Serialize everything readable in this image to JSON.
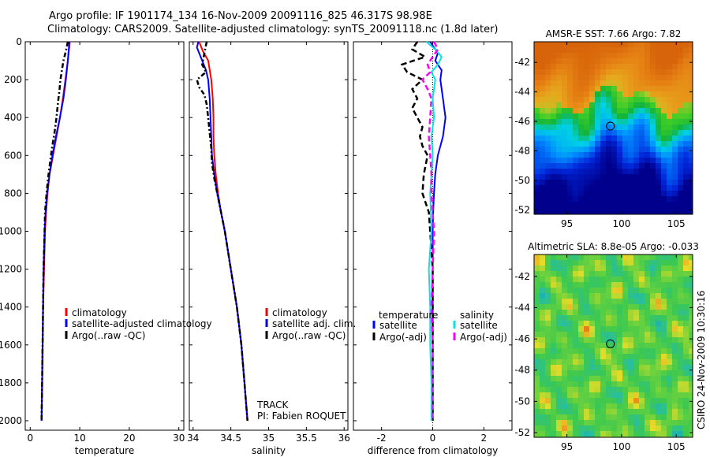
{
  "title": {
    "line1": "Argo profile: IF 1901174_134 16-Nov-2009 20091116_825 46.317S 98.98E",
    "line2": "Climatology: CARS2009. Satellite-adjusted climatology: synTS_20091118.nc (1.8d later)"
  },
  "colors": {
    "climatology": "#ff0000",
    "satellite": "#0000ff",
    "argo": "#000000",
    "sat_sal": "#00e5e5",
    "argo_sal": "#ff00ff"
  },
  "chart_data": [
    {
      "type": "line",
      "xlabel": "temperature",
      "xlim": [
        -1,
        31
      ],
      "ylim": [
        2050,
        0
      ],
      "xticks": [
        0,
        10,
        20,
        30
      ],
      "xtick_labels": [
        "0",
        "10",
        "20",
        "30"
      ],
      "yticks": [
        0,
        200,
        400,
        600,
        800,
        1000,
        1200,
        1400,
        1600,
        1800,
        2000
      ],
      "ytick_labels": [
        "0",
        "200",
        "400",
        "600",
        "800",
        "1000",
        "1200",
        "1400",
        "1600",
        "1800",
        "2000"
      ],
      "legend": {
        "entries": [
          "climatology",
          "satellite-adjusted climatology",
          "Argo(..raw -QC)"
        ]
      },
      "series": [
        {
          "name": "climatology",
          "key": "climatology",
          "dash": "",
          "depth": [
            0,
            100,
            200,
            300,
            400,
            500,
            600,
            700,
            800,
            900,
            1000,
            1200,
            1400,
            1600,
            1800,
            2000
          ],
          "values": [
            8.0,
            7.6,
            7.1,
            6.6,
            6.0,
            5.3,
            4.6,
            3.9,
            3.5,
            3.2,
            3.0,
            2.8,
            2.6,
            2.5,
            2.4,
            2.3
          ]
        },
        {
          "name": "satellite-adjusted climatology",
          "key": "satellite",
          "dash": "",
          "depth": [
            0,
            100,
            200,
            300,
            400,
            500,
            600,
            700,
            800,
            900,
            1000,
            1200,
            1400,
            1600,
            1800,
            2000
          ],
          "values": [
            7.9,
            7.6,
            7.2,
            6.7,
            6.0,
            5.2,
            4.5,
            3.9,
            3.4,
            3.1,
            2.9,
            2.7,
            2.6,
            2.5,
            2.4,
            2.3
          ]
        },
        {
          "name": "Argo(..raw -QC)",
          "key": "argo",
          "dash": "6,3,2,3",
          "depth": [
            0,
            50,
            100,
            150,
            200,
            260,
            320,
            400,
            480,
            560,
            640,
            720,
            800,
            900,
            1000,
            1200,
            1400,
            1600,
            1800,
            2000
          ],
          "values": [
            7.6,
            7.2,
            6.7,
            6.4,
            6.1,
            5.9,
            5.6,
            5.3,
            4.9,
            4.4,
            4.0,
            3.6,
            3.3,
            3.0,
            2.9,
            2.7,
            2.6,
            2.5,
            2.4,
            2.3
          ]
        }
      ]
    },
    {
      "type": "line",
      "xlabel": "salinity",
      "xlim": [
        33.95,
        36.05
      ],
      "ylim": [
        2050,
        0
      ],
      "xticks": [
        34,
        34.5,
        35,
        35.5,
        36
      ],
      "xtick_labels": [
        "34",
        "34.5",
        "35",
        "35.5",
        "36"
      ],
      "legend": {
        "entries": [
          "climatology",
          "satellite adj. clim.",
          "Argo(..raw -QC)"
        ]
      },
      "annotation": {
        "track": "TRACK",
        "pi": "PI: Fabien ROQUET"
      },
      "series": [
        {
          "name": "climatology",
          "key": "climatology",
          "dash": "",
          "depth": [
            0,
            50,
            100,
            200,
            300,
            400,
            500,
            600,
            700,
            800,
            900,
            1000,
            1200,
            1400,
            1600,
            1800,
            2000
          ],
          "values": [
            34.08,
            34.13,
            34.2,
            34.24,
            34.26,
            34.27,
            34.27,
            34.28,
            34.3,
            34.33,
            34.37,
            34.42,
            34.5,
            34.58,
            34.64,
            34.68,
            34.72
          ]
        },
        {
          "name": "satellite adj. clim.",
          "key": "satellite",
          "dash": "",
          "depth": [
            0,
            30,
            80,
            150,
            200,
            300,
            400,
            500,
            600,
            700,
            800,
            900,
            1000,
            1200,
            1400,
            1600,
            1800,
            2000
          ],
          "values": [
            34.07,
            34.05,
            34.1,
            34.17,
            34.2,
            34.22,
            34.23,
            34.24,
            34.25,
            34.28,
            34.32,
            34.37,
            34.42,
            34.5,
            34.58,
            34.64,
            34.68,
            34.72
          ]
        },
        {
          "name": "Argo(..raw -QC)",
          "key": "argo",
          "dash": "6,3,2,3",
          "depth": [
            0,
            60,
            120,
            160,
            200,
            240,
            280,
            330,
            400,
            480,
            560,
            640,
            720,
            800,
            900,
            1000,
            1200,
            1400,
            1600,
            1800,
            2000
          ],
          "values": [
            34.18,
            34.15,
            34.12,
            34.17,
            34.05,
            34.08,
            34.15,
            34.18,
            34.2,
            34.22,
            34.24,
            34.25,
            34.28,
            34.32,
            34.37,
            34.42,
            34.5,
            34.58,
            34.64,
            34.68,
            34.72
          ]
        }
      ]
    },
    {
      "type": "line",
      "xlabel": "difference from climatology",
      "xlim": [
        -3.1,
        3.1
      ],
      "ylim": [
        2050,
        0
      ],
      "xticks": [
        -2,
        0,
        2
      ],
      "xtick_labels": [
        "-2",
        "0",
        "2"
      ],
      "legend": {
        "temperature_header": "temperature",
        "salinity_header": "salinity",
        "entries": [
          "satellite",
          "Argo(-adj)",
          "satellite",
          "Argo(-adj)"
        ]
      },
      "series": [
        {
          "name": "temperature satellite",
          "key": "satellite",
          "dash": "",
          "depth": [
            0,
            30,
            60,
            100,
            150,
            200,
            300,
            400,
            500,
            600,
            700,
            800,
            900,
            1000,
            1200,
            1400,
            1600,
            1800,
            2000
          ],
          "values": [
            -0.1,
            0.05,
            0.2,
            0.1,
            0.35,
            0.3,
            0.4,
            0.5,
            0.4,
            0.2,
            0.1,
            0.05,
            0.02,
            0.0,
            0.0,
            0.0,
            0.0,
            0.0,
            0.0
          ]
        },
        {
          "name": "temperature Argo(-adj)",
          "key": "argo",
          "dash": "7,4",
          "depth": [
            0,
            40,
            80,
            120,
            160,
            200,
            250,
            300,
            350,
            400,
            450,
            500,
            550,
            600,
            700,
            800,
            900,
            1000,
            1100,
            1200,
            1400,
            1600,
            1800,
            2000
          ],
          "values": [
            -0.6,
            -0.8,
            -0.3,
            -1.2,
            -1.0,
            -0.4,
            -0.8,
            -0.6,
            -0.8,
            -0.6,
            -0.4,
            -0.5,
            -0.4,
            -0.2,
            -0.35,
            -0.4,
            -0.15,
            -0.1,
            -0.05,
            0.0,
            0.0,
            0.0,
            0.0,
            0.0
          ]
        },
        {
          "name": "salinity satellite",
          "key": "sat_sal",
          "dash": "",
          "depth": [
            0,
            40,
            80,
            120,
            160,
            200,
            300,
            400,
            500,
            600,
            700,
            800,
            1000,
            1200,
            1400,
            1600,
            1800,
            2000
          ],
          "values": [
            -0.25,
            0.1,
            0.35,
            0.2,
            -0.05,
            0.1,
            0.0,
            0.05,
            -0.05,
            0.0,
            -0.05,
            -0.1,
            -0.05,
            -0.15,
            -0.1,
            -0.1,
            -0.05,
            -0.05
          ]
        },
        {
          "name": "salinity Argo(-adj)",
          "key": "argo_sal",
          "dash": "7,4",
          "depth": [
            0,
            40,
            80,
            120,
            160,
            200,
            250,
            300,
            400,
            500,
            600,
            700,
            800,
            900,
            1000,
            1200,
            1400,
            1600,
            1800,
            2000
          ],
          "values": [
            0.05,
            0.2,
            0.0,
            -0.2,
            -0.1,
            -0.4,
            -0.2,
            -0.05,
            -0.1,
            -0.15,
            -0.1,
            -0.05,
            -0.05,
            0.0,
            0.05,
            0.0,
            -0.05,
            0.0,
            0.0,
            0.0
          ]
        }
      ]
    },
    {
      "type": "heatmap",
      "title": "AMSR-E SST: 7.66 Argo: 7.82",
      "xticks": [
        95,
        100,
        105
      ],
      "xtick_labels": [
        "95",
        "100",
        "105"
      ],
      "yticks": [
        -42,
        -44,
        -46,
        -48,
        -50,
        -52
      ],
      "ytick_labels": [
        "-42",
        "-44",
        "-46",
        "-48",
        "-50",
        "-52"
      ],
      "xlim": [
        92,
        106.5
      ],
      "ylim": [
        -52.3,
        -40.6
      ],
      "marker": {
        "lon": 98.98,
        "lat": -46.317
      }
    },
    {
      "type": "heatmap",
      "title": "Altimetric SLA: 8.8e-05 Argo: -0.033",
      "xticks": [
        95,
        100,
        105
      ],
      "xtick_labels": [
        "95",
        "100",
        "105"
      ],
      "yticks": [
        -42,
        -44,
        -46,
        -48,
        -50,
        -52
      ],
      "ytick_labels": [
        "-42",
        "-44",
        "-46",
        "-48",
        "-50",
        "-52"
      ],
      "xlim": [
        92,
        106.5
      ],
      "ylim": [
        -52.3,
        -40.6
      ],
      "marker": {
        "lon": 98.98,
        "lat": -46.317
      }
    }
  ],
  "footer": {
    "credit": "CSIRO 24-Nov-2009 10:30:16"
  }
}
